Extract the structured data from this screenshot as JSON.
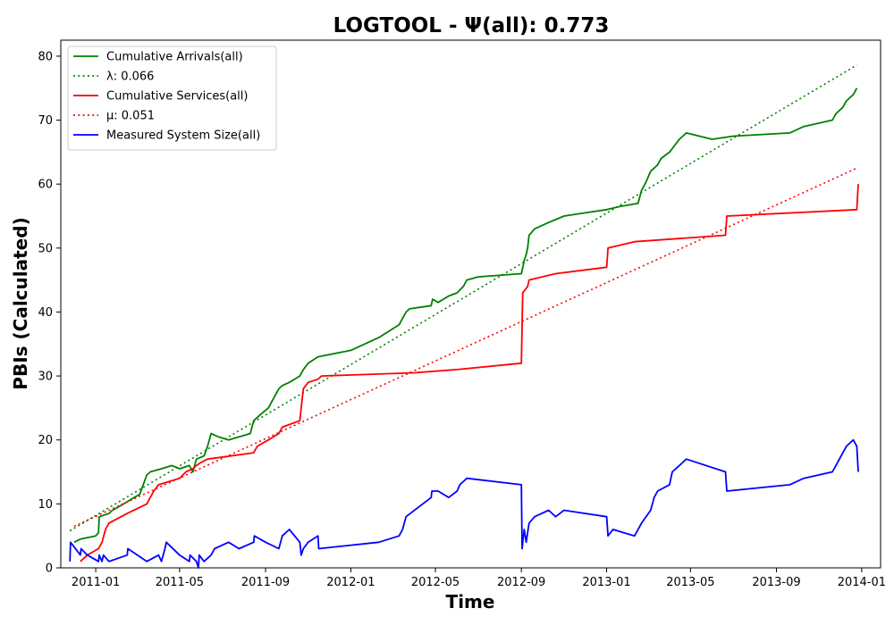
{
  "chart_data": {
    "type": "line",
    "title": "LOGTOOL -  Ψ(all): 0.773",
    "xlabel": "Time",
    "ylabel": "PBIs (Calculated)",
    "xlim": [
      "2010-11-12",
      "2014-01-28"
    ],
    "ylim": [
      0,
      82.5
    ],
    "x_ticks": [
      "2011-01",
      "2011-05",
      "2011-09",
      "2012-01",
      "2012-05",
      "2012-09",
      "2013-01",
      "2013-05",
      "2013-09",
      "2014-01"
    ],
    "y_ticks": [
      0,
      10,
      20,
      30,
      40,
      50,
      60,
      70,
      80
    ],
    "grid": false,
    "legend_position": "top-left",
    "series": [
      {
        "name": "Cumulative Arrivals(all)",
        "color": "#008000",
        "style": "solid",
        "x": [
          "2010-12-01",
          "2010-12-10",
          "2011-01-01",
          "2011-01-05",
          "2011-01-06",
          "2011-01-20",
          "2011-01-25",
          "2011-02-10",
          "2011-02-25",
          "2011-03-05",
          "2011-03-10",
          "2011-03-15",
          "2011-03-20",
          "2011-04-05",
          "2011-04-20",
          "2011-05-01",
          "2011-05-15",
          "2011-05-20",
          "2011-05-25",
          "2011-06-05",
          "2011-06-10",
          "2011-06-15",
          "2011-06-25",
          "2011-07-10",
          "2011-08-10",
          "2011-08-15",
          "2011-08-25",
          "2011-09-05",
          "2011-09-10",
          "2011-09-15",
          "2011-09-20",
          "2011-09-25",
          "2011-10-05",
          "2011-10-20",
          "2011-10-25",
          "2011-11-01",
          "2011-11-15",
          "2012-01-01",
          "2012-02-10",
          "2012-03-10",
          "2012-03-15",
          "2012-03-20",
          "2012-03-25",
          "2012-04-25",
          "2012-04-27",
          "2012-05-05",
          "2012-05-20",
          "2012-06-01",
          "2012-06-10",
          "2012-06-15",
          "2012-07-01",
          "2012-09-01",
          "2012-09-02",
          "2012-09-05",
          "2012-09-08",
          "2012-09-10",
          "2012-09-12",
          "2012-09-20",
          "2012-10-10",
          "2012-11-01",
          "2012-12-01",
          "2013-01-01",
          "2013-01-20",
          "2013-02-15",
          "2013-02-20",
          "2013-02-25",
          "2013-03-05",
          "2013-03-15",
          "2013-03-20",
          "2013-04-01",
          "2013-04-15",
          "2013-04-25",
          "2013-06-01",
          "2013-07-01",
          "2013-09-20",
          "2013-10-10",
          "2013-11-20",
          "2013-11-25",
          "2013-12-05",
          "2013-12-10",
          "2013-12-20",
          "2013-12-25"
        ],
        "values": [
          4,
          4.5,
          5,
          5.5,
          8,
          8.5,
          9,
          10,
          11,
          11.5,
          13,
          14.5,
          15,
          15.5,
          16,
          15.5,
          16,
          15,
          17,
          17.5,
          19,
          21,
          20.5,
          20,
          21,
          23,
          24,
          25,
          26,
          27,
          28,
          28.5,
          29,
          30,
          31,
          32,
          33,
          34,
          36,
          38,
          39,
          40,
          40.5,
          41,
          42,
          41.5,
          42.5,
          43,
          44,
          45,
          45.5,
          46,
          46.5,
          48,
          49,
          50,
          52,
          53,
          54,
          55,
          55.5,
          56,
          56.5,
          57,
          59,
          60,
          62,
          63,
          64,
          65,
          67,
          68,
          67,
          67.5,
          68,
          69,
          70,
          71,
          72,
          73,
          74,
          75
        ]
      },
      {
        "name": "λ: 0.066",
        "color": "#008000",
        "style": "dotted",
        "x": [
          "2010-11-25",
          "2013-12-25"
        ],
        "values": [
          5.8,
          78.6
        ]
      },
      {
        "name": "Cumulative Services(all)",
        "color": "#ff0000",
        "style": "solid",
        "x": [
          "2010-12-10",
          "2010-12-20",
          "2011-01-05",
          "2011-01-10",
          "2011-01-15",
          "2011-01-20",
          "2011-02-15",
          "2011-03-15",
          "2011-03-25",
          "2011-04-01",
          "2011-05-01",
          "2011-05-10",
          "2011-05-20",
          "2011-05-25",
          "2011-06-01",
          "2011-06-10",
          "2011-08-15",
          "2011-08-20",
          "2011-09-05",
          "2011-09-20",
          "2011-09-25",
          "2011-10-20",
          "2011-10-22",
          "2011-10-25",
          "2011-11-01",
          "2011-11-15",
          "2011-11-20",
          "2012-04-01",
          "2012-06-01",
          "2012-09-01",
          "2012-09-03",
          "2012-09-10",
          "2012-09-12",
          "2012-10-20",
          "2013-01-01",
          "2013-01-03",
          "2013-02-10",
          "2013-06-20",
          "2013-06-22",
          "2013-12-25",
          "2013-12-27"
        ],
        "values": [
          1,
          2,
          3,
          4,
          6,
          7,
          8.5,
          10,
          12,
          13,
          14,
          15,
          15.5,
          16,
          16.5,
          17,
          18,
          19,
          20,
          21,
          22,
          23,
          25,
          28,
          29,
          29.5,
          30,
          30.5,
          31,
          32,
          43,
          44,
          45,
          46,
          47,
          50,
          51,
          52,
          55,
          56,
          60
        ]
      },
      {
        "name": "μ: 0.051",
        "color": "#ff0000",
        "style": "dotted",
        "x": [
          "2010-12-01",
          "2013-12-25"
        ],
        "values": [
          6.5,
          62.5
        ]
      },
      {
        "name": "Measured System Size(all)",
        "color": "#0000ff",
        "style": "solid",
        "x": [
          "2010-11-25",
          "2010-11-26",
          "2010-12-10",
          "2010-12-11",
          "2010-12-20",
          "2011-01-05",
          "2011-01-06",
          "2011-01-10",
          "2011-01-12",
          "2011-01-20",
          "2011-02-15",
          "2011-02-16",
          "2011-03-15",
          "2011-04-01",
          "2011-04-05",
          "2011-04-10",
          "2011-04-12",
          "2011-05-01",
          "2011-05-15",
          "2011-05-16",
          "2011-05-25",
          "2011-05-28",
          "2011-05-29",
          "2011-06-05",
          "2011-06-15",
          "2011-06-20",
          "2011-07-10",
          "2011-07-25",
          "2011-08-15",
          "2011-08-16",
          "2011-09-01",
          "2011-09-20",
          "2011-09-25",
          "2011-10-05",
          "2011-10-20",
          "2011-10-22",
          "2011-10-25",
          "2011-11-01",
          "2011-11-15",
          "2011-11-16",
          "2012-02-10",
          "2012-03-10",
          "2012-03-15",
          "2012-03-20",
          "2012-04-25",
          "2012-04-26",
          "2012-05-05",
          "2012-05-20",
          "2012-06-01",
          "2012-06-05",
          "2012-06-15",
          "2012-09-01",
          "2012-09-02",
          "2012-09-05",
          "2012-09-08",
          "2012-09-12",
          "2012-09-20",
          "2012-10-10",
          "2012-10-20",
          "2012-11-01",
          "2013-01-01",
          "2013-01-03",
          "2013-01-10",
          "2013-02-10",
          "2013-02-20",
          "2013-03-05",
          "2013-03-10",
          "2013-03-15",
          "2013-04-01",
          "2013-04-05",
          "2013-04-15",
          "2013-04-25",
          "2013-06-20",
          "2013-06-22",
          "2013-09-20",
          "2013-10-10",
          "2013-11-20",
          "2013-11-25",
          "2013-12-05",
          "2013-12-10",
          "2013-12-20",
          "2013-12-25",
          "2013-12-27"
        ],
        "values": [
          1,
          4,
          2,
          3,
          2,
          1,
          2,
          1,
          2,
          1,
          2,
          3,
          1,
          2,
          1,
          3,
          4,
          2,
          1,
          2,
          1,
          0,
          2,
          1,
          2,
          3,
          4,
          3,
          4,
          5,
          4,
          3,
          5,
          6,
          4,
          2,
          3,
          4,
          5,
          3,
          4,
          5,
          6,
          8,
          11,
          12,
          12,
          11,
          12,
          13,
          14,
          13,
          3,
          6,
          4,
          7,
          8,
          9,
          8,
          9,
          8,
          5,
          6,
          5,
          7,
          9,
          11,
          12,
          13,
          15,
          16,
          17,
          15,
          12,
          13,
          14,
          15,
          16,
          18,
          19,
          20,
          19,
          15
        ]
      }
    ]
  }
}
